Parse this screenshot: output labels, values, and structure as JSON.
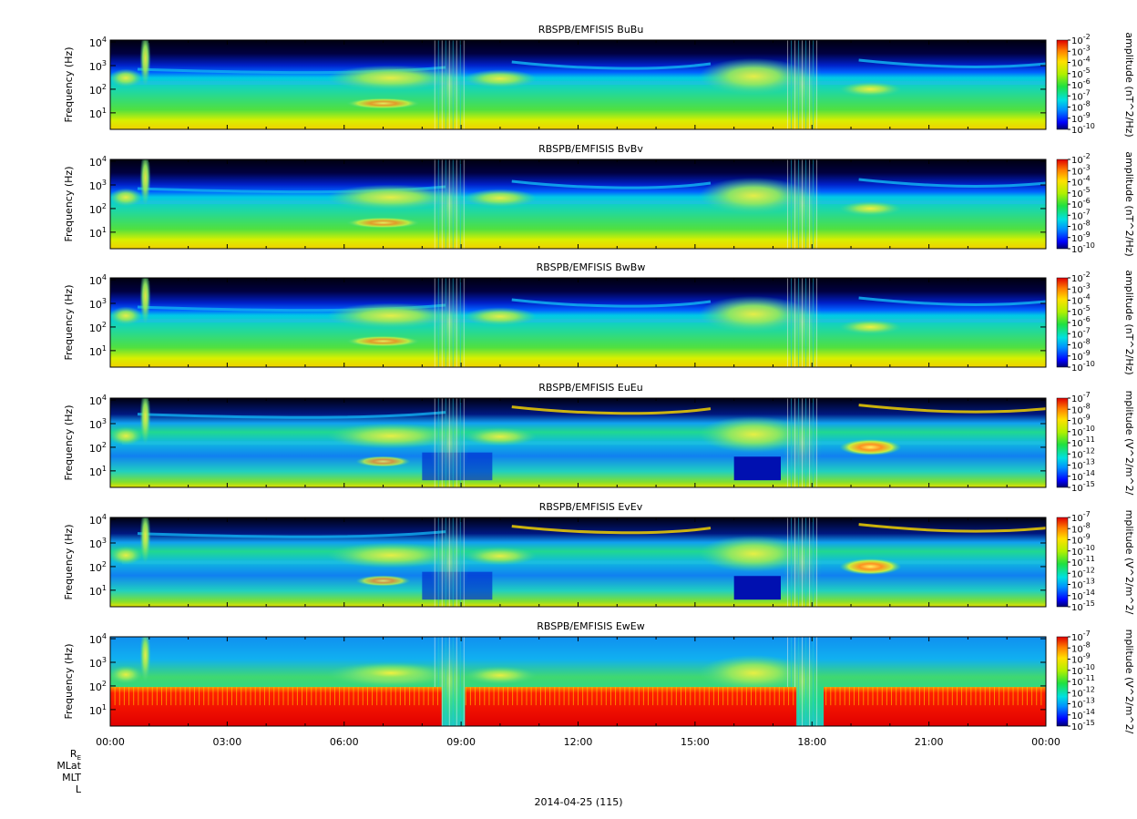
{
  "chart_data": [
    {
      "type": "heatmap",
      "title": "RBSPB/EMFISIS  BuBu",
      "ylabel": "Frequency (Hz)",
      "yscale": "log",
      "ylim": [
        2,
        12000
      ],
      "yticks": [
        {
          "base": "10",
          "exp": "1"
        },
        {
          "base": "10",
          "exp": "2"
        },
        {
          "base": "10",
          "exp": "3"
        },
        {
          "base": "10",
          "exp": "4"
        }
      ],
      "colorbar": {
        "label": "amplitude (nT^2/Hz)",
        "scale": "log",
        "range": [
          -10,
          -2
        ],
        "ticks": [
          {
            "base": "10",
            "exp": "-2"
          },
          {
            "base": "10",
            "exp": "-3"
          },
          {
            "base": "10",
            "exp": "-4"
          },
          {
            "base": "10",
            "exp": "-5"
          },
          {
            "base": "10",
            "exp": "-6"
          },
          {
            "base": "10",
            "exp": "-7"
          },
          {
            "base": "10",
            "exp": "-8"
          },
          {
            "base": "10",
            "exp": "-9"
          },
          {
            "base": "10",
            "exp": "-10"
          }
        ]
      }
    },
    {
      "type": "heatmap",
      "title": "RBSPB/EMFISIS  BvBv",
      "ylabel": "Frequency (Hz)",
      "yscale": "log",
      "ylim": [
        2,
        12000
      ],
      "yticks": [
        {
          "base": "10",
          "exp": "1"
        },
        {
          "base": "10",
          "exp": "2"
        },
        {
          "base": "10",
          "exp": "3"
        },
        {
          "base": "10",
          "exp": "4"
        }
      ],
      "colorbar": {
        "label": "amplitude (nT^2/Hz)",
        "scale": "log",
        "range": [
          -10,
          -2
        ],
        "ticks": [
          {
            "base": "10",
            "exp": "-2"
          },
          {
            "base": "10",
            "exp": "-3"
          },
          {
            "base": "10",
            "exp": "-4"
          },
          {
            "base": "10",
            "exp": "-5"
          },
          {
            "base": "10",
            "exp": "-6"
          },
          {
            "base": "10",
            "exp": "-7"
          },
          {
            "base": "10",
            "exp": "-8"
          },
          {
            "base": "10",
            "exp": "-9"
          },
          {
            "base": "10",
            "exp": "-10"
          }
        ]
      }
    },
    {
      "type": "heatmap",
      "title": "RBSPB/EMFISIS  BwBw",
      "ylabel": "Frequency (Hz)",
      "yscale": "log",
      "ylim": [
        2,
        12000
      ],
      "yticks": [
        {
          "base": "10",
          "exp": "1"
        },
        {
          "base": "10",
          "exp": "2"
        },
        {
          "base": "10",
          "exp": "3"
        },
        {
          "base": "10",
          "exp": "4"
        }
      ],
      "colorbar": {
        "label": "amplitude (nT^2/Hz)",
        "scale": "log",
        "range": [
          -10,
          -2
        ],
        "ticks": [
          {
            "base": "10",
            "exp": "-2"
          },
          {
            "base": "10",
            "exp": "-3"
          },
          {
            "base": "10",
            "exp": "-4"
          },
          {
            "base": "10",
            "exp": "-5"
          },
          {
            "base": "10",
            "exp": "-6"
          },
          {
            "base": "10",
            "exp": "-7"
          },
          {
            "base": "10",
            "exp": "-8"
          },
          {
            "base": "10",
            "exp": "-9"
          },
          {
            "base": "10",
            "exp": "-10"
          }
        ]
      }
    },
    {
      "type": "heatmap",
      "title": "RBSPB/EMFISIS  EuEu",
      "ylabel": "Frequency (Hz)",
      "yscale": "log",
      "ylim": [
        2,
        12000
      ],
      "yticks": [
        {
          "base": "10",
          "exp": "1"
        },
        {
          "base": "10",
          "exp": "2"
        },
        {
          "base": "10",
          "exp": "3"
        },
        {
          "base": "10",
          "exp": "4"
        }
      ],
      "colorbar": {
        "label": "mplitude (V^2/m^2/",
        "scale": "log",
        "range": [
          -15,
          -7
        ],
        "ticks": [
          {
            "base": "10",
            "exp": "-7"
          },
          {
            "base": "10",
            "exp": "-8"
          },
          {
            "base": "10",
            "exp": "-9"
          },
          {
            "base": "10",
            "exp": "-10"
          },
          {
            "base": "10",
            "exp": "-11"
          },
          {
            "base": "10",
            "exp": "-12"
          },
          {
            "base": "10",
            "exp": "-13"
          },
          {
            "base": "10",
            "exp": "-14"
          },
          {
            "base": "10",
            "exp": "-15"
          }
        ]
      }
    },
    {
      "type": "heatmap",
      "title": "RBSPB/EMFISIS  EvEv",
      "ylabel": "Frequency (Hz)",
      "yscale": "log",
      "ylim": [
        2,
        12000
      ],
      "yticks": [
        {
          "base": "10",
          "exp": "1"
        },
        {
          "base": "10",
          "exp": "2"
        },
        {
          "base": "10",
          "exp": "3"
        },
        {
          "base": "10",
          "exp": "4"
        }
      ],
      "colorbar": {
        "label": "mplitude (V^2/m^2/",
        "scale": "log",
        "range": [
          -15,
          -7
        ],
        "ticks": [
          {
            "base": "10",
            "exp": "-7"
          },
          {
            "base": "10",
            "exp": "-8"
          },
          {
            "base": "10",
            "exp": "-9"
          },
          {
            "base": "10",
            "exp": "-10"
          },
          {
            "base": "10",
            "exp": "-11"
          },
          {
            "base": "10",
            "exp": "-12"
          },
          {
            "base": "10",
            "exp": "-13"
          },
          {
            "base": "10",
            "exp": "-14"
          },
          {
            "base": "10",
            "exp": "-15"
          }
        ]
      }
    },
    {
      "type": "heatmap",
      "title": "RBSPB/EMFISIS  EwEw",
      "ylabel": "Frequency (Hz)",
      "yscale": "log",
      "ylim": [
        2,
        12000
      ],
      "yticks": [
        {
          "base": "10",
          "exp": "1"
        },
        {
          "base": "10",
          "exp": "2"
        },
        {
          "base": "10",
          "exp": "3"
        },
        {
          "base": "10",
          "exp": "4"
        }
      ],
      "colorbar": {
        "label": "mplitude (V^2/m^2/",
        "scale": "log",
        "range": [
          -15,
          -7
        ],
        "ticks": [
          {
            "base": "10",
            "exp": "-7"
          },
          {
            "base": "10",
            "exp": "-8"
          },
          {
            "base": "10",
            "exp": "-9"
          },
          {
            "base": "10",
            "exp": "-10"
          },
          {
            "base": "10",
            "exp": "-11"
          },
          {
            "base": "10",
            "exp": "-12"
          },
          {
            "base": "10",
            "exp": "-13"
          },
          {
            "base": "10",
            "exp": "-14"
          },
          {
            "base": "10",
            "exp": "-15"
          }
        ]
      }
    }
  ],
  "time_axis": {
    "ticks": [
      "00:00",
      "03:00",
      "06:00",
      "09:00",
      "12:00",
      "15:00",
      "18:00",
      "21:00",
      "00:00"
    ],
    "date_label": "2014-04-25 (115)",
    "ephemeris_labels": [
      {
        "main": "R",
        "sub": "E"
      },
      {
        "main": "MLat",
        "sub": ""
      },
      {
        "main": "MLT",
        "sub": ""
      },
      {
        "main": "L",
        "sub": ""
      }
    ]
  }
}
